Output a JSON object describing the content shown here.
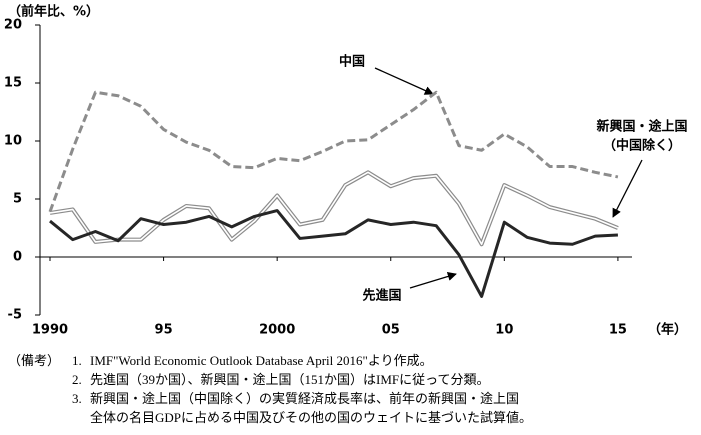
{
  "chart_data": {
    "type": "line",
    "ylabel": "（前年比、%）",
    "xlabel": "（年）",
    "x": [
      1990,
      1991,
      1992,
      1993,
      1994,
      1995,
      1996,
      1997,
      1998,
      1999,
      2000,
      2001,
      2002,
      2003,
      2004,
      2005,
      2006,
      2007,
      2008,
      2009,
      2010,
      2011,
      2012,
      2013,
      2014,
      2015
    ],
    "series": [
      {
        "name": "中国",
        "color": "#8c8c8c",
        "style": "dashed",
        "values": [
          3.9,
          9.3,
          14.2,
          13.9,
          13.0,
          11.0,
          9.9,
          9.2,
          7.8,
          7.7,
          8.5,
          8.3,
          9.1,
          10.0,
          10.1,
          11.4,
          12.7,
          14.2,
          9.6,
          9.2,
          10.6,
          9.5,
          7.8,
          7.8,
          7.3,
          6.9
        ]
      },
      {
        "name": [
          "新興国・途上国",
          "（中国除く）"
        ],
        "color": "#8c8c8c",
        "style": "double",
        "values": [
          3.8,
          4.1,
          1.3,
          1.5,
          1.5,
          3.2,
          4.4,
          4.2,
          1.5,
          3.1,
          5.3,
          2.8,
          3.2,
          6.2,
          7.3,
          6.1,
          6.8,
          7.0,
          4.6,
          1.1,
          6.2,
          5.3,
          4.3,
          3.8,
          3.3,
          2.5
        ]
      },
      {
        "name": "先進国",
        "color": "#262626",
        "style": "solid",
        "values": [
          3.1,
          1.5,
          2.2,
          1.4,
          3.3,
          2.8,
          3.0,
          3.5,
          2.6,
          3.5,
          4.0,
          1.6,
          1.8,
          2.0,
          3.2,
          2.8,
          3.0,
          2.7,
          0.2,
          -3.4,
          3.0,
          1.7,
          1.2,
          1.1,
          1.8,
          1.9
        ]
      }
    ],
    "xlim": [
      1989.56,
      2015.62
    ],
    "xticks": [
      1990,
      {
        "value": 1995,
        "label": "95"
      },
      2000,
      {
        "value": 2005,
        "label": "05"
      },
      {
        "value": 2010,
        "label": "10"
      },
      {
        "value": 2015,
        "label": "15"
      }
    ],
    "ylim": [
      -5,
      20
    ],
    "yticks": [
      -5,
      0,
      5,
      10,
      15,
      20
    ],
    "notes": {
      "label": "（備考）",
      "items": [
        {
          "number": "1.",
          "lines": [
            "IMF\"World Economic Outlook Database April 2016\"より作成。"
          ]
        },
        {
          "number": "2.",
          "lines": [
            "先進国（39か国）、新興国・途上国（151か国）はIMFに従って分類。"
          ]
        },
        {
          "number": "3.",
          "lines": [
            "新興国・途上国（中国除く）の実質経済成長率は、前年の新興国・途上国",
            "全体の名目GDPに占める中国及びその他の国のウェイトに基づいた試算値。"
          ]
        }
      ]
    }
  }
}
